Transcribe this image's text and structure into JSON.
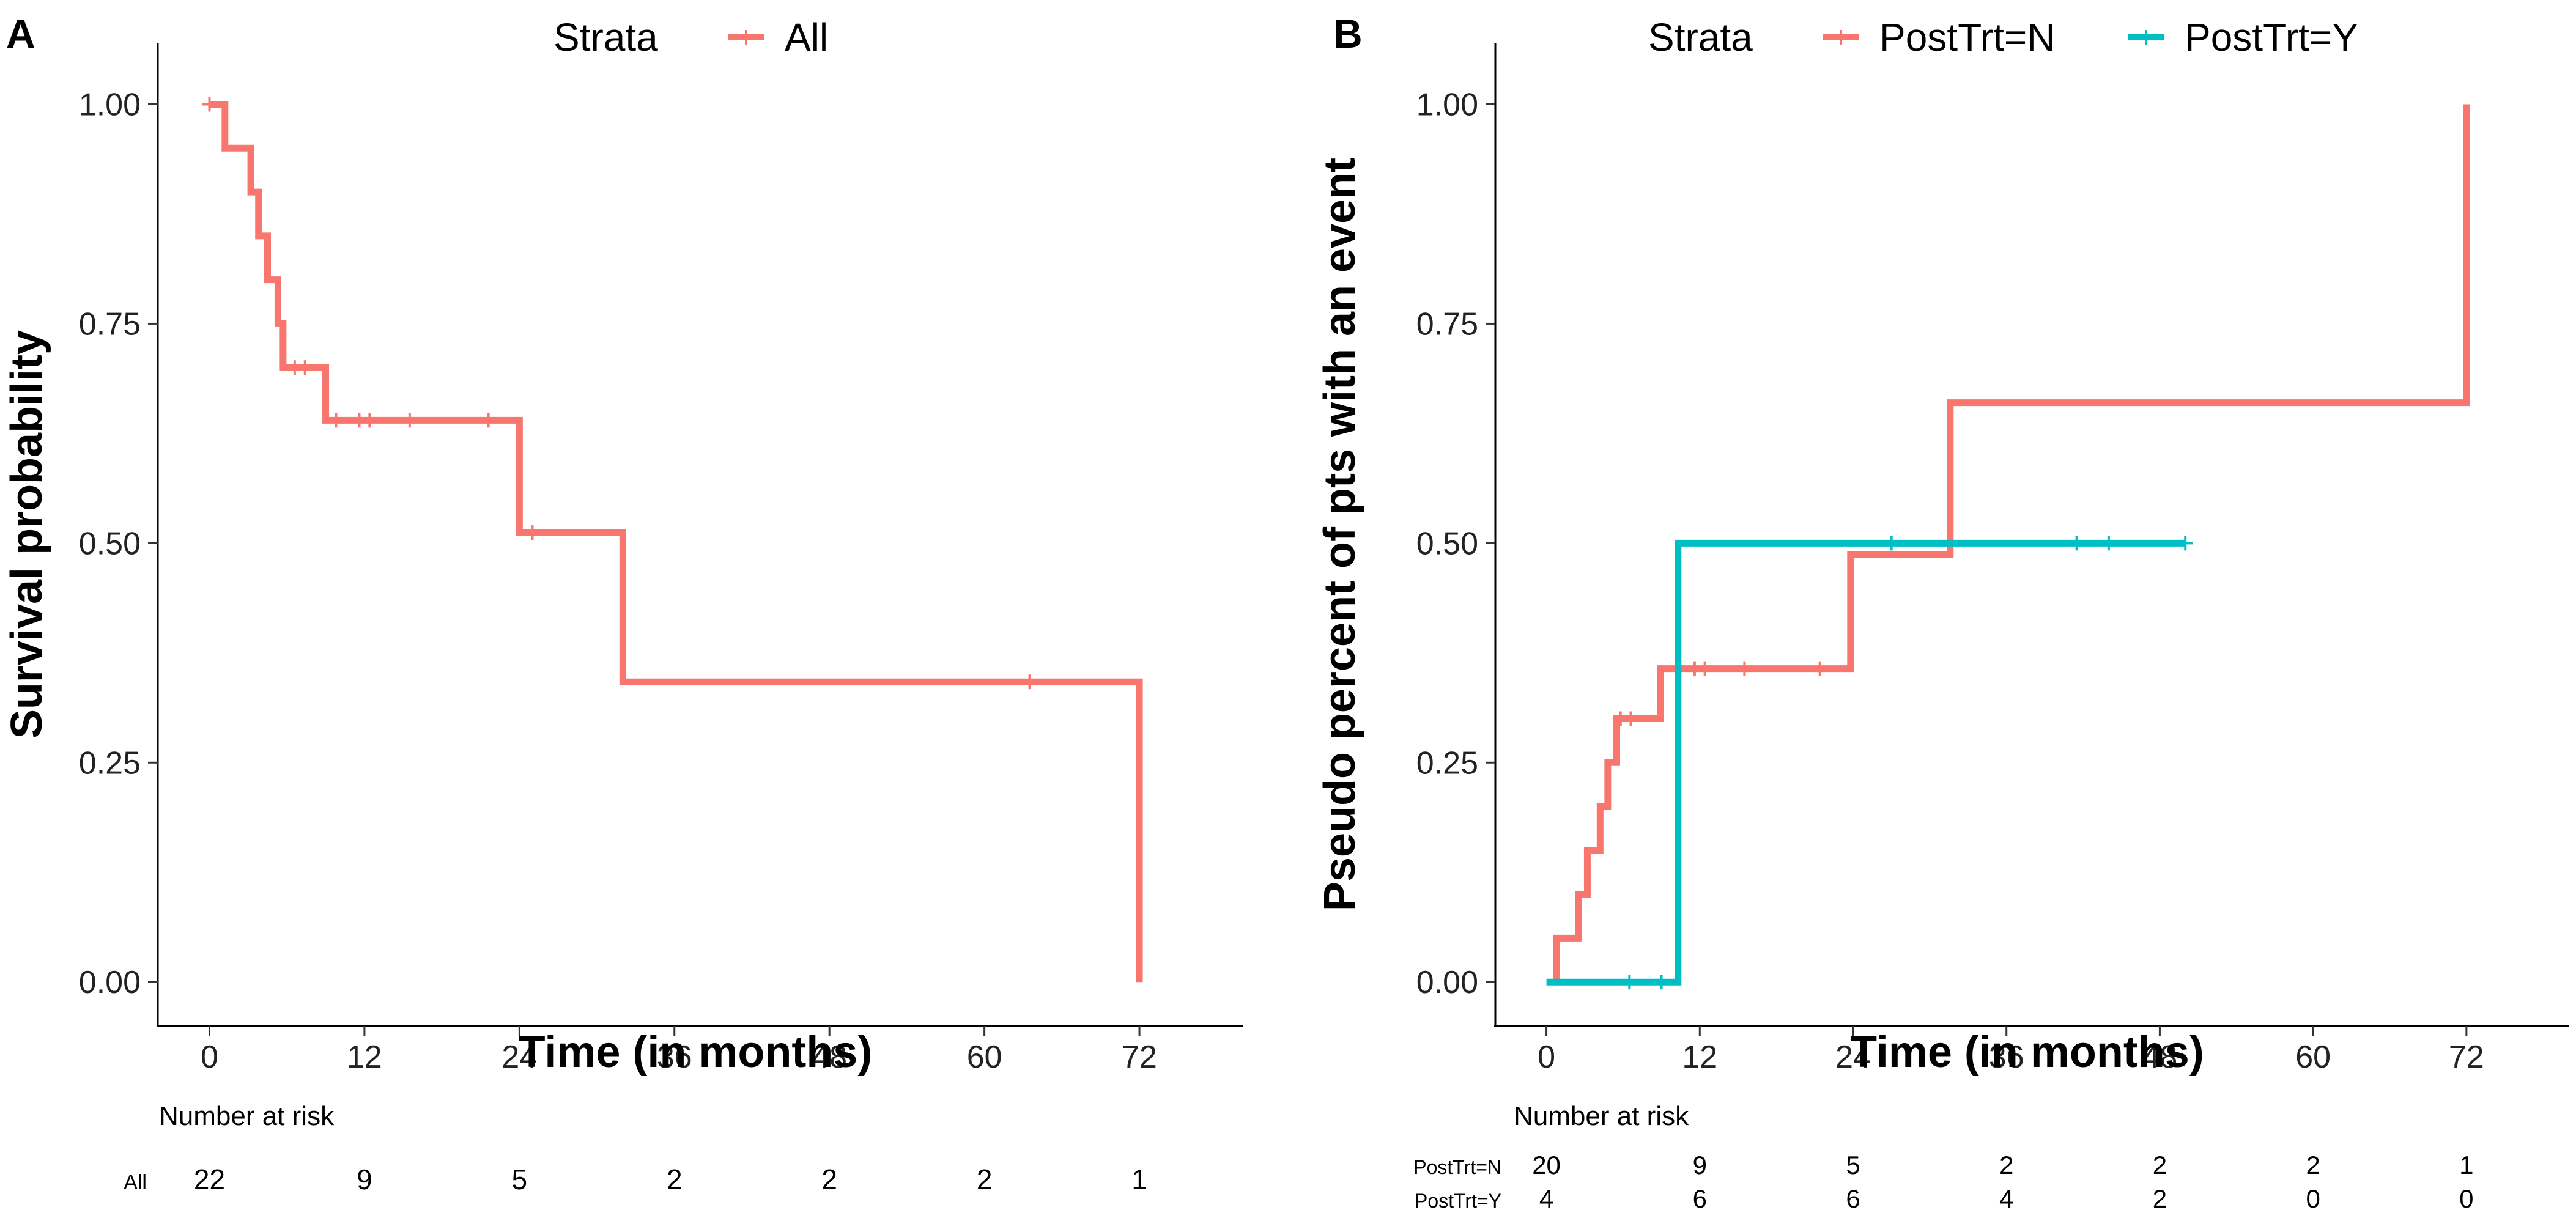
{
  "chart_data": [
    {
      "panel_label": "A",
      "type": "line",
      "subtype": "kaplan-meier-step",
      "legend_title": "Strata",
      "legend_position": "top",
      "xlabel": "Time (in months)",
      "ylabel": "Survival probability",
      "xlim": [
        -4,
        80
      ],
      "ylim": [
        -0.05,
        1.07
      ],
      "xticks": [
        0,
        12,
        24,
        36,
        48,
        60,
        72
      ],
      "yticks": [
        0.0,
        0.25,
        0.5,
        0.75,
        1.0
      ],
      "xtick_labels": [
        "0",
        "12",
        "24",
        "36",
        "48",
        "60",
        "72"
      ],
      "ytick_labels": [
        "0.00",
        "0.25",
        "0.50",
        "0.75",
        "1.00"
      ],
      "series": [
        {
          "name": "All",
          "color": "#f8766d",
          "steps": [
            [
              0,
              1.0
            ],
            [
              1.2,
              0.95
            ],
            [
              3.2,
              0.9
            ],
            [
              3.8,
              0.85
            ],
            [
              4.5,
              0.8
            ],
            [
              5.3,
              0.75
            ],
            [
              5.7,
              0.7
            ],
            [
              9,
              0.64
            ],
            [
              24,
              0.512
            ],
            [
              32,
              0.342
            ],
            [
              72,
              0.342
            ],
            [
              72,
              0.0
            ]
          ],
          "censor_times": [
            0,
            6.6,
            7.4,
            9.8,
            11.6,
            12.4,
            15.5,
            21.6,
            25,
            63.5
          ]
        }
      ],
      "risk_table": {
        "title": "Number at risk",
        "times": [
          0,
          12,
          24,
          36,
          48,
          60,
          72
        ],
        "rows": [
          {
            "label": "All",
            "counts": [
              "22",
              "9",
              "5",
              "2",
              "2",
              "2",
              "1"
            ]
          }
        ]
      }
    },
    {
      "panel_label": "B",
      "type": "line",
      "subtype": "cumulative-incidence-step",
      "legend_title": "Strata",
      "legend_position": "top",
      "xlabel": "Time (in months)",
      "ylabel": "Pseudo percent of pts with an event",
      "xlim": [
        -4,
        80
      ],
      "ylim": [
        -0.05,
        1.07
      ],
      "xticks": [
        0,
        12,
        24,
        36,
        48,
        60,
        72
      ],
      "yticks": [
        0.0,
        0.25,
        0.5,
        0.75,
        1.0
      ],
      "xtick_labels": [
        "0",
        "12",
        "24",
        "36",
        "48",
        "60",
        "72"
      ],
      "ytick_labels": [
        "0.00",
        "0.25",
        "0.50",
        "0.75",
        "1.00"
      ],
      "series": [
        {
          "name": "PostTrt=N",
          "color": "#f8766d",
          "steps": [
            [
              0.8,
              0.0
            ],
            [
              0.8,
              0.05
            ],
            [
              2.5,
              0.1
            ],
            [
              3.2,
              0.15
            ],
            [
              4.2,
              0.2
            ],
            [
              4.8,
              0.25
            ],
            [
              5.5,
              0.3
            ],
            [
              8.9,
              0.357
            ],
            [
              23.8,
              0.487
            ],
            [
              31.6,
              0.66
            ],
            [
              72,
              0.66
            ],
            [
              72,
              1.0
            ]
          ],
          "censor_times": [
            5.8,
            6.6,
            11.6,
            12.4,
            15.5,
            21.4
          ]
        },
        {
          "name": "PostTrt=Y",
          "color": "#00bfc4",
          "steps": [
            [
              0,
              0.0
            ],
            [
              10.3,
              0.5
            ],
            [
              50,
              0.5
            ]
          ],
          "censor_times": [
            6.5,
            9.0,
            27,
            41.5,
            44,
            50
          ]
        }
      ],
      "risk_table": {
        "title": "Number at risk",
        "times": [
          0,
          12,
          24,
          36,
          48,
          60,
          72
        ],
        "rows": [
          {
            "label": "PostTrt=N",
            "counts": [
              "20",
              "9",
              "5",
              "2",
              "2",
              "2",
              "1"
            ]
          },
          {
            "label": "PostTrt=Y",
            "counts": [
              "4",
              "6",
              "6",
              "4",
              "2",
              "0",
              "0"
            ]
          }
        ]
      }
    }
  ]
}
